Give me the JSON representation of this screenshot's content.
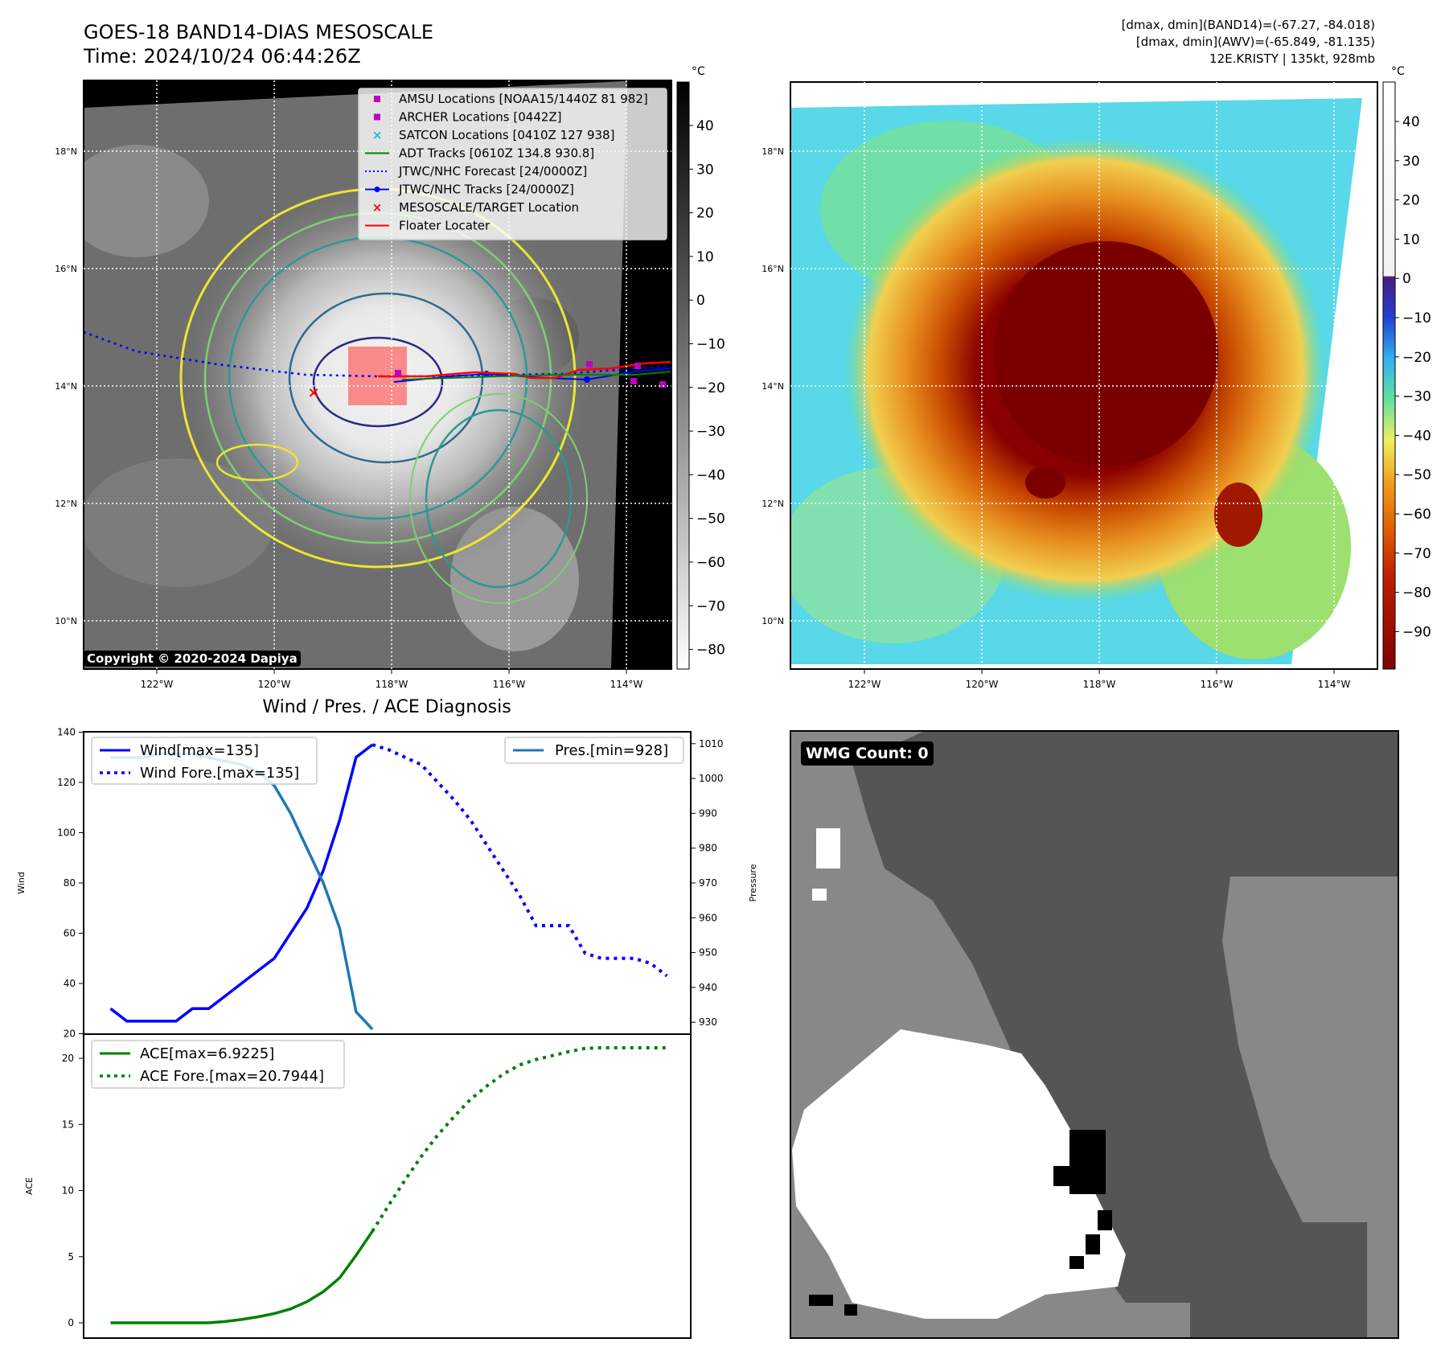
{
  "header": {
    "title_line1": "GOES-18 BAND14-DIAS MESOSCALE",
    "title_line2": "Time: 2024/10/24 06:44:26Z",
    "info_line1": "[dmax, dmin](BAND14)=(-67.27, -84.018)",
    "info_line2": "[dmax, dmin](AWV)=(-65.849, -81.135)",
    "info_line3": "12E.KRISTY | 135kt, 928mb"
  },
  "map": {
    "lat_labels": [
      "18°N",
      "16°N",
      "14°N",
      "12°N",
      "10°N"
    ],
    "lat_values": [
      18,
      16,
      14,
      12,
      10
    ],
    "lon_labels": [
      "122°W",
      "120°W",
      "118°W",
      "116°W",
      "114°W"
    ],
    "lon_values": [
      -122,
      -120,
      -118,
      -116,
      -114
    ],
    "copyright": "Copyright © 2020-2024 Dapiya"
  },
  "colorbar_gray": {
    "unit": "°C",
    "ticks": [
      "40",
      "30",
      "20",
      "10",
      "0",
      "−10",
      "−20",
      "−30",
      "−40",
      "−50",
      "−60",
      "−70",
      "−80"
    ]
  },
  "colorbar_color": {
    "unit": "°C",
    "ticks": [
      "40",
      "30",
      "20",
      "10",
      "0",
      "−10",
      "−20",
      "−30",
      "−40",
      "−50",
      "−60",
      "−70",
      "−80",
      "−90"
    ]
  },
  "legend": [
    {
      "label": "AMSU Locations [NOAA15/1440Z 81 982]",
      "color": "#c000c0",
      "marker": "square"
    },
    {
      "label": "ARCHER Locations [0442Z]",
      "color": "#c000c0",
      "marker": "square"
    },
    {
      "label": "SATCON Locations [0410Z 127 938]",
      "color": "#17becf",
      "marker": "x"
    },
    {
      "label": "ADT Tracks [0610Z 134.8 930.8]",
      "color": "#008000",
      "marker": "line"
    },
    {
      "label": "JTWC/NHC Forecast [24/0000Z]",
      "color": "#0000ff",
      "marker": "dotted"
    },
    {
      "label": "JTWC/NHC Tracks [24/0000Z]",
      "color": "#0000ff",
      "marker": "line-dot"
    },
    {
      "label": "MESOSCALE/TARGET Location",
      "color": "#ff0000",
      "marker": "x"
    },
    {
      "label": "Floater Locater",
      "color": "#ff0000",
      "marker": "line"
    }
  ],
  "diagnosis": {
    "title": "Wind / Pres. / ACE Diagnosis",
    "wind_ylabel": "Wind",
    "pres_ylabel": "Pressure",
    "ace_ylabel": "ACE",
    "wind_legend": "Wind[max=135]",
    "wind_fore_legend": "Wind Fore.[max=135]",
    "pres_legend": "Pres.[min=928]",
    "ace_legend": "ACE[max=6.9225]",
    "ace_fore_legend": "ACE Fore.[max=20.7944]",
    "wind_ticks": [
      "140",
      "120",
      "100",
      "80",
      "60",
      "40",
      "20"
    ],
    "pres_ticks": [
      "1010",
      "1000",
      "990",
      "980",
      "970",
      "960",
      "950",
      "940",
      "930"
    ],
    "ace_ticks": [
      "20",
      "15",
      "10",
      "5",
      "0"
    ]
  },
  "wmg": {
    "label": "WMG Count: 0"
  },
  "chart_data": [
    {
      "type": "line",
      "title": "Wind / Pres. / ACE Diagnosis",
      "ylabel": "Wind",
      "ylim": [
        20,
        140
      ],
      "y2label": "Pressure",
      "y2lim": [
        926,
        1010
      ],
      "series": [
        {
          "name": "Wind[max=135]",
          "axis": "left",
          "color": "#0000ff",
          "style": "solid",
          "x": [
            0,
            1,
            2,
            3,
            4,
            5,
            6,
            7,
            8,
            9,
            10,
            11,
            12,
            13,
            14,
            15,
            16
          ],
          "values": [
            30,
            25,
            25,
            25,
            25,
            30,
            30,
            35,
            40,
            45,
            50,
            60,
            70,
            85,
            105,
            130,
            135
          ]
        },
        {
          "name": "Wind Fore.[max=135]",
          "axis": "left",
          "color": "#0000ff",
          "style": "dotted",
          "x": [
            16,
            17,
            18,
            19,
            20,
            21,
            22,
            23,
            24,
            25,
            26,
            27,
            28,
            29,
            30,
            31,
            32,
            33,
            34
          ],
          "values": [
            135,
            133,
            130,
            127,
            120,
            113,
            105,
            95,
            85,
            75,
            63,
            63,
            63,
            52,
            50,
            50,
            50,
            48,
            43
          ]
        },
        {
          "name": "Pres.[min=928]",
          "axis": "right",
          "color": "#1f77b4",
          "style": "solid",
          "x": [
            0,
            1,
            2,
            3,
            4,
            5,
            6,
            7,
            8,
            9,
            10,
            11,
            12,
            13,
            14,
            15,
            16
          ],
          "values": [
            1006,
            1006,
            1006,
            1007,
            1007,
            1007,
            1006,
            1005,
            1004,
            1002,
            998,
            990,
            980,
            970,
            957,
            933,
            928
          ]
        }
      ]
    },
    {
      "type": "line",
      "ylabel": "ACE",
      "ylim": [
        -0.5,
        21
      ],
      "series": [
        {
          "name": "ACE[max=6.9225]",
          "color": "#008000",
          "style": "solid",
          "x": [
            0,
            1,
            2,
            3,
            4,
            5,
            6,
            7,
            8,
            9,
            10,
            11,
            12,
            13,
            14,
            15,
            16
          ],
          "values": [
            0,
            0,
            0,
            0,
            0,
            0,
            0,
            0.1,
            0.25,
            0.45,
            0.7,
            1.05,
            1.6,
            2.35,
            3.4,
            5.1,
            6.92
          ]
        },
        {
          "name": "ACE Fore.[max=20.7944]",
          "color": "#008000",
          "style": "dotted",
          "x": [
            16,
            17,
            18,
            19,
            20,
            21,
            22,
            23,
            24,
            25,
            26,
            27,
            28,
            29,
            30,
            31,
            32,
            33,
            34
          ],
          "values": [
            6.92,
            8.9,
            10.8,
            12.6,
            14.2,
            15.6,
            16.9,
            17.9,
            18.8,
            19.5,
            19.9,
            20.2,
            20.5,
            20.75,
            20.79,
            20.79,
            20.79,
            20.79,
            20.79
          ]
        }
      ]
    }
  ]
}
